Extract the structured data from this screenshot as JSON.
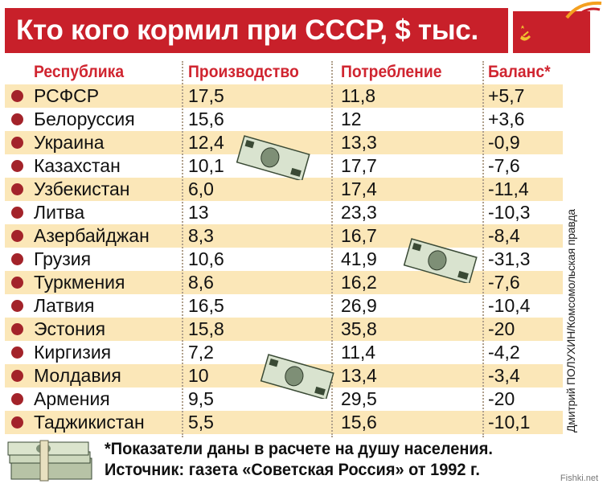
{
  "title": "Кто кого кормил при СССР, $ тыс.",
  "colors": {
    "accent_red": "#c8202a",
    "row_highlight": "#fbe7b8",
    "header_text": "#d02530",
    "bullet": "#a3232a"
  },
  "chart_data": {
    "type": "table",
    "title": "Кто кого кормил при СССР, $ тыс.",
    "columns": [
      "Республика",
      "Производство",
      "Потребление",
      "Баланс*"
    ],
    "rows": [
      [
        "РСФСР",
        "17,5",
        "11,8",
        "+5,7"
      ],
      [
        "Белоруссия",
        "15,6",
        "12",
        "+3,6"
      ],
      [
        "Украина",
        "12,4",
        "13,3",
        "-0,9"
      ],
      [
        "Казахстан",
        "10,1",
        "17,7",
        "-7,6"
      ],
      [
        "Узбекистан",
        "6,0",
        "17,4",
        "-11,4"
      ],
      [
        "Литва",
        "13",
        "23,3",
        "-10,3"
      ],
      [
        "Азербайджан",
        "8,3",
        "16,7",
        "-8,4"
      ],
      [
        "Грузия",
        "10,6",
        "41,9",
        "-31,3"
      ],
      [
        "Туркмения",
        "8,6",
        "16,2",
        "-7,6"
      ],
      [
        "Латвия",
        "16,5",
        "26,9",
        "-10,4"
      ],
      [
        "Эстония",
        "15,8",
        "35,8",
        "-20"
      ],
      [
        "Киргизия",
        "7,2",
        "11,4",
        "-4,2"
      ],
      [
        "Молдавия",
        "10",
        "13,4",
        "-3,4"
      ],
      [
        "Армения",
        "9,5",
        "29,5",
        "-20"
      ],
      [
        "Таджикистан",
        "5,5",
        "15,6",
        "-10,1"
      ]
    ]
  },
  "footnote_line1": "*Показатели даны в расчете на душу населения.",
  "footnote_line2": "Источник: газета «Советская Россия» от 1992 г.",
  "side_caption": "Дмитрий ПОЛУХИН/Комсомольская правда",
  "watermark": "Fishki.net",
  "icons": [
    "flag-icon",
    "dollar-bill-icon",
    "money-stack-icon",
    "bullet-icon"
  ]
}
